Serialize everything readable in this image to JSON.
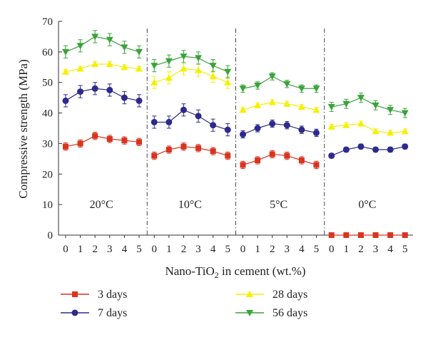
{
  "chart_data": {
    "type": "line",
    "xlabel_prefix": "Nano-TiO",
    "xlabel_sub": "2",
    "xlabel_suffix": " in cement (wt.%)",
    "ylabel": "Compressive strength (MPa)",
    "ylim": [
      0,
      70
    ],
    "yticks": [
      0,
      10,
      20,
      30,
      40,
      50,
      60,
      70
    ],
    "xticks": [
      0,
      1,
      2,
      3,
      4,
      5
    ],
    "grid": false,
    "legend_position": "bottom",
    "panels": [
      {
        "label": "20°C",
        "series": [
          {
            "name": "3 days",
            "values": [
              29,
              30,
              32.5,
              31.5,
              31,
              30.5
            ],
            "errors": [
              1.2,
              1.2,
              1.2,
              1.2,
              1.2,
              1.2
            ]
          },
          {
            "name": "7 days",
            "values": [
              44,
              47,
              48,
              47.5,
              45,
              44
            ],
            "errors": [
              2,
              2,
              2,
              2,
              2,
              2
            ]
          },
          {
            "name": "28 days",
            "values": [
              53.5,
              54.5,
              56,
              56,
              55,
              54.5
            ],
            "errors": [
              0.8,
              0.8,
              0.8,
              0.8,
              0.8,
              0.8
            ]
          },
          {
            "name": "56 days",
            "values": [
              60,
              62,
              65,
              64,
              61.5,
              60
            ],
            "errors": [
              2,
              2,
              2,
              2,
              2,
              2
            ]
          }
        ]
      },
      {
        "label": "10°C",
        "series": [
          {
            "name": "3 days",
            "values": [
              26,
              28,
              29,
              28.5,
              27.5,
              26
            ],
            "errors": [
              1.2,
              1.2,
              1.2,
              1.2,
              1.2,
              1.2
            ]
          },
          {
            "name": "7 days",
            "values": [
              37,
              37,
              41,
              39,
              36,
              34.5
            ],
            "errors": [
              2,
              2,
              2,
              2,
              2,
              2
            ]
          },
          {
            "name": "28 days",
            "values": [
              50,
              51.5,
              54.5,
              54,
              52,
              50
            ],
            "errors": [
              2,
              2,
              2,
              2,
              2,
              2
            ]
          },
          {
            "name": "56 days",
            "values": [
              55.5,
              57,
              58.5,
              58,
              55.5,
              53.5
            ],
            "errors": [
              2,
              2,
              2,
              2,
              2,
              2
            ]
          }
        ]
      },
      {
        "label": "5°C",
        "series": [
          {
            "name": "3 days",
            "values": [
              23,
              24.5,
              26.5,
              26,
              24.5,
              23
            ],
            "errors": [
              1.2,
              1.2,
              1.2,
              1.2,
              1.2,
              1.2
            ]
          },
          {
            "name": "7 days",
            "values": [
              33,
              35,
              36.5,
              36,
              34.5,
              33.5
            ],
            "errors": [
              1.2,
              1.2,
              1.2,
              1.2,
              1.2,
              1.2
            ]
          },
          {
            "name": "28 days",
            "values": [
              41,
              42.5,
              43.5,
              43,
              42,
              41
            ],
            "errors": [
              0.8,
              0.8,
              0.8,
              0.8,
              0.8,
              0.8
            ]
          },
          {
            "name": "56 days",
            "values": [
              48,
              49,
              52,
              49.5,
              48,
              48
            ],
            "errors": [
              1.2,
              1.2,
              1.2,
              1.2,
              1.2,
              1.2
            ]
          }
        ]
      },
      {
        "label": "0°C",
        "series": [
          {
            "name": "3 days",
            "values": [
              0,
              0,
              0,
              0,
              0,
              0
            ],
            "errors": [
              0,
              0,
              0,
              0,
              0,
              0
            ]
          },
          {
            "name": "7 days",
            "values": [
              26,
              28,
              29,
              28,
              28,
              29
            ],
            "errors": [
              0.8,
              0.8,
              0.8,
              0.8,
              0.8,
              0.8
            ]
          },
          {
            "name": "28 days",
            "values": [
              35.5,
              36,
              36.5,
              34,
              33.5,
              34
            ],
            "errors": [
              0.8,
              0.8,
              0.8,
              0.8,
              0.8,
              0.8
            ]
          },
          {
            "name": "56 days",
            "values": [
              42,
              43,
              45,
              42.5,
              41,
              40
            ],
            "errors": [
              1.5,
              1.5,
              1.5,
              1.5,
              1.5,
              1.5
            ]
          }
        ]
      }
    ],
    "legend": [
      {
        "name": "3 days",
        "color": "#d9341f",
        "marker": "square"
      },
      {
        "name": "7 days",
        "color": "#2d2a8c",
        "marker": "circle"
      },
      {
        "name": "28 days",
        "color": "#f4f000",
        "marker": "triangle-up"
      },
      {
        "name": "56 days",
        "color": "#3aa33a",
        "marker": "triangle-down"
      }
    ]
  }
}
